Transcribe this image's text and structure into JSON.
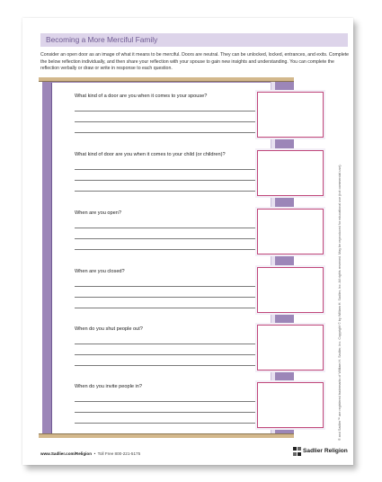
{
  "worksheet": {
    "title": "Becoming a More Merciful Family",
    "intro": "Consider an open door as an image of what it means to be merciful. Doors are neutral. They can be unlocked, locked, entrances, and exits. Complete the below reflection individually, and then share your reflection with your spouse to gain new insights and understanding. You can complete the reflection verbally or draw or write in response to each question.",
    "questions": [
      {
        "label": "What kind of a door are you when it comes to your spouse?"
      },
      {
        "label": "What kind of door are you when it comes to your child (or children)?"
      },
      {
        "label": "When are you open?"
      },
      {
        "label": "When are you closed?"
      },
      {
        "label": "When do you shut people out?"
      },
      {
        "label": "When do you invite people in?"
      }
    ]
  },
  "footer": {
    "website": "www.Sadlier.com/Religion",
    "phone": "Toll Free 800-221-5175",
    "brand": "Sadlier Religion",
    "copyright": "® and Sadlier™ are registered trademarks of William H. Sadlier, Inc. Copyright © by William H. Sadlier, Inc. All rights reserved. May be reproduced for educational use (not commercial use)."
  },
  "colors": {
    "title_bar": "#ddd4ea",
    "title_text": "#6e5a92",
    "door_purple": "#9c86b8",
    "box_border": "#c0477a",
    "frame_wood": "#d3b88c"
  }
}
